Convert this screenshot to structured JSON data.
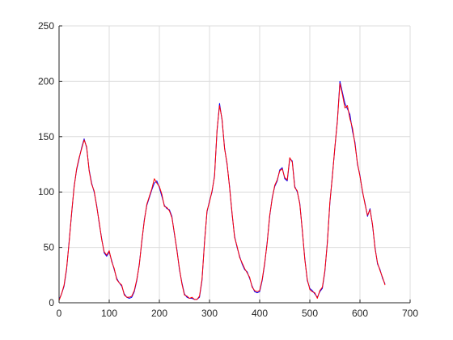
{
  "chart_data": {
    "type": "line",
    "title": "",
    "xlabel": "",
    "ylabel": "",
    "xlim": [
      0,
      700
    ],
    "ylim": [
      0,
      250
    ],
    "grid": true,
    "x_ticks": [
      0,
      100,
      200,
      300,
      400,
      500,
      600,
      700
    ],
    "y_ticks": [
      0,
      50,
      100,
      150,
      200,
      250
    ],
    "x_tick_labels": [
      "0",
      "100",
      "200",
      "300",
      "400",
      "500",
      "600",
      "700"
    ],
    "y_tick_labels": [
      "0",
      "50",
      "100",
      "150",
      "200",
      "250"
    ],
    "colors": {
      "series_1": "#0000ff",
      "series_2": "#ff0000",
      "grid": "#dcdcdc",
      "axis": "#262626"
    },
    "x": [
      0,
      5,
      10,
      15,
      20,
      25,
      30,
      35,
      40,
      45,
      50,
      55,
      60,
      65,
      70,
      75,
      80,
      85,
      90,
      95,
      100,
      105,
      110,
      115,
      120,
      125,
      130,
      135,
      140,
      145,
      150,
      155,
      160,
      165,
      170,
      175,
      180,
      185,
      190,
      195,
      200,
      205,
      210,
      215,
      220,
      225,
      230,
      235,
      240,
      245,
      250,
      255,
      260,
      265,
      270,
      275,
      280,
      285,
      290,
      295,
      300,
      305,
      310,
      315,
      320,
      325,
      330,
      335,
      340,
      345,
      350,
      355,
      360,
      365,
      370,
      375,
      380,
      385,
      390,
      395,
      400,
      405,
      410,
      415,
      420,
      425,
      430,
      435,
      440,
      445,
      450,
      455,
      460,
      465,
      470,
      475,
      480,
      485,
      490,
      495,
      500,
      505,
      510,
      515,
      520,
      525,
      530,
      535,
      540,
      545,
      550,
      555,
      560,
      565,
      570,
      575,
      580,
      585,
      590,
      595,
      600,
      605,
      610,
      615,
      620,
      625,
      630,
      635,
      640,
      645,
      650
    ],
    "series": [
      {
        "values": [
          3,
          8,
          15,
          30,
          55,
          80,
          105,
          120,
          130,
          140,
          148,
          140,
          120,
          108,
          100,
          88,
          72,
          58,
          45,
          42,
          46,
          38,
          30,
          22,
          18,
          15,
          8,
          5,
          4,
          5,
          10,
          20,
          35,
          55,
          75,
          88,
          95,
          102,
          108,
          110,
          104,
          96,
          88,
          85,
          84,
          78,
          62,
          48,
          30,
          18,
          8,
          5,
          4,
          4,
          3,
          3,
          5,
          20,
          55,
          82,
          92,
          100,
          115,
          155,
          180,
          165,
          140,
          125,
          105,
          80,
          60,
          50,
          42,
          35,
          30,
          28,
          22,
          15,
          10,
          9,
          10,
          20,
          35,
          55,
          78,
          95,
          105,
          110,
          120,
          122,
          112,
          110,
          130,
          128,
          105,
          100,
          90,
          65,
          40,
          20,
          13,
          11,
          8,
          5,
          10,
          13,
          28,
          55,
          90,
          115,
          140,
          165,
          200,
          190,
          180,
          175,
          170,
          155,
          145,
          125,
          115,
          100,
          90,
          78,
          85,
          70,
          50,
          35,
          30,
          22,
          17
        ]
      },
      {
        "values": [
          2,
          8,
          16,
          31,
          54,
          81,
          104,
          121,
          131,
          139,
          147,
          141,
          119,
          107,
          101,
          87,
          73,
          57,
          46,
          43,
          47,
          37,
          31,
          21,
          18,
          16,
          7,
          5,
          5,
          6,
          11,
          21,
          34,
          56,
          74,
          89,
          96,
          103,
          112,
          108,
          105,
          98,
          87,
          86,
          83,
          77,
          63,
          47,
          31,
          17,
          7,
          6,
          4,
          5,
          3,
          3,
          6,
          21,
          54,
          83,
          91,
          101,
          114,
          156,
          178,
          166,
          139,
          126,
          104,
          81,
          59,
          51,
          41,
          36,
          31,
          27,
          23,
          14,
          11,
          10,
          11,
          21,
          36,
          54,
          79,
          94,
          106,
          111,
          119,
          121,
          113,
          111,
          131,
          127,
          104,
          101,
          89,
          66,
          39,
          21,
          12,
          10,
          9,
          4,
          11,
          14,
          29,
          54,
          91,
          114,
          141,
          164,
          198,
          188,
          176,
          178,
          166,
          158,
          143,
          126,
          114,
          101,
          89,
          79,
          84,
          71,
          49,
          36,
          29,
          23,
          16
        ]
      }
    ]
  }
}
